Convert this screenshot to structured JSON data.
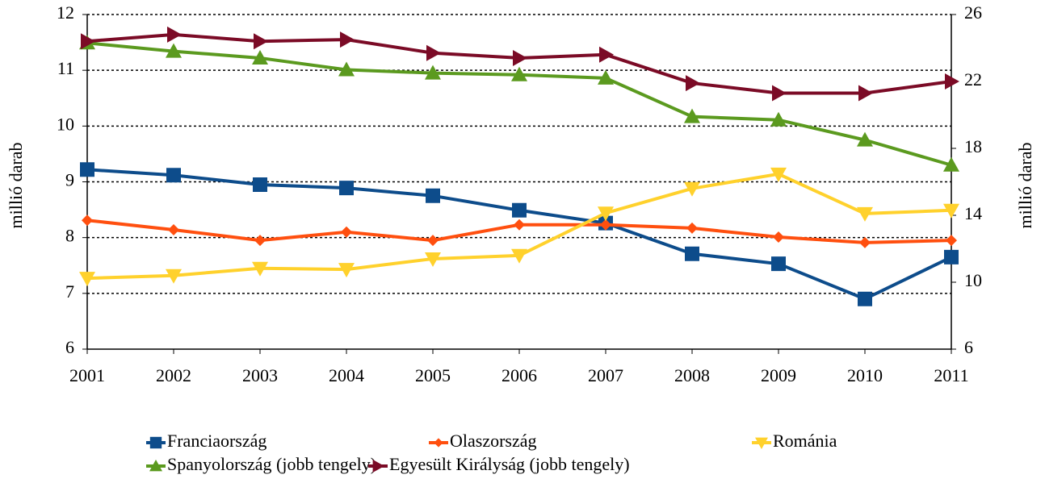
{
  "chart_data": {
    "type": "line",
    "categories": [
      "2001",
      "2002",
      "2003",
      "2004",
      "2005",
      "2006",
      "2007",
      "2008",
      "2009",
      "2010",
      "2011"
    ],
    "ylabel": "millió darab",
    "y2label": "millió darab",
    "ylim": [
      6,
      12
    ],
    "yticks": [
      6,
      7,
      8,
      9,
      10,
      11,
      12
    ],
    "y2lim": [
      6,
      26
    ],
    "y2ticks": [
      6,
      10,
      14,
      18,
      22,
      26
    ],
    "grid": true,
    "series": [
      {
        "name": "Franciaország",
        "color": "#0d4c8b",
        "marker": "square",
        "values": [
          9.22,
          9.12,
          8.95,
          8.89,
          8.75,
          8.49,
          8.26,
          7.71,
          7.53,
          6.9,
          7.65
        ]
      },
      {
        "name": "Olaszország",
        "color": "#ff4f0f",
        "marker": "diamond",
        "values": [
          8.31,
          8.14,
          7.95,
          8.1,
          7.95,
          8.23,
          8.23,
          8.17,
          8.01,
          7.91,
          7.95
        ]
      },
      {
        "name": "Románia",
        "color": "#ffd12c",
        "marker": "triangle-down",
        "values": [
          7.27,
          7.32,
          7.45,
          7.43,
          7.62,
          7.68,
          8.44,
          8.88,
          9.14,
          8.43,
          8.49
        ]
      },
      {
        "name": "Spanyolország (jobb tengely)",
        "color": "#5b9a1f",
        "marker": "triangle-up",
        "axis": "y2",
        "values": [
          24.3,
          23.8,
          23.4,
          22.7,
          22.5,
          22.4,
          22.2,
          19.9,
          19.7,
          18.5,
          17.0
        ]
      },
      {
        "name": "Egyesült Királyság (jobb tengely)",
        "color": "#7b0b26",
        "marker": "triangle-right",
        "axis": "y2",
        "values": [
          24.4,
          24.8,
          24.4,
          24.5,
          23.7,
          23.4,
          23.6,
          21.9,
          21.3,
          21.3,
          22.0
        ]
      }
    ]
  }
}
